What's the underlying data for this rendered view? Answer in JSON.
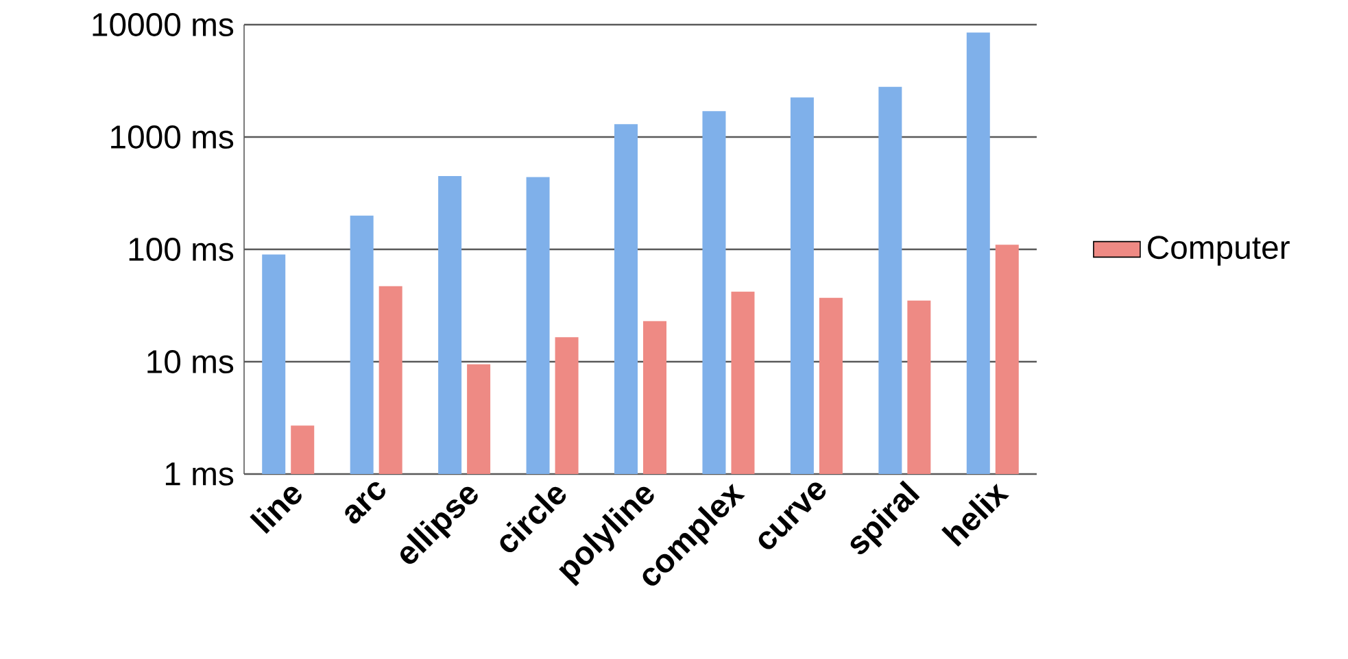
{
  "chart_data": {
    "type": "bar",
    "categories": [
      "line",
      "arc",
      "ellipse",
      "circle",
      "polyline",
      "complex",
      "curve",
      "spiral",
      "helix"
    ],
    "series": [
      {
        "color": "#7fb0ea",
        "values": [
          90,
          200,
          450,
          440,
          1300,
          1700,
          2250,
          2800,
          8500
        ]
      },
      {
        "name": "Computer",
        "color": "#ee8a84",
        "values": [
          2.7,
          47,
          9.5,
          16.5,
          23,
          42,
          37,
          35,
          110
        ]
      }
    ],
    "log": true,
    "ylim": [
      1,
      10000
    ],
    "yticks": [
      {
        "value": 1,
        "label": "1 ms"
      },
      {
        "value": 10,
        "label": "10 ms"
      },
      {
        "value": 100,
        "label": "100 ms"
      },
      {
        "value": 1000,
        "label": "1000 ms"
      },
      {
        "value": 10000,
        "label": "10000 ms"
      }
    ],
    "grid": "y",
    "legend": "right"
  }
}
